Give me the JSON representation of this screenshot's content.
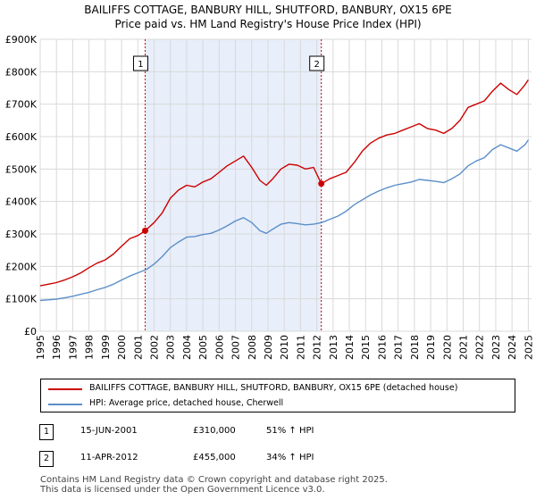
{
  "title": "BAILIFFS COTTAGE, BANBURY HILL, SHUTFORD, BANBURY, OX15 6PE",
  "subtitle": "Price paid vs. HM Land Registry's House Price Index (HPI)",
  "colors": {
    "property": "#cc0000",
    "hpi": "#5b8fc9",
    "shade": "#e8eefa",
    "grid": "#d9d9d9"
  },
  "chart_data": {
    "type": "line",
    "title": "BAILIFFS COTTAGE, BANBURY HILL, SHUTFORD, BANBURY, OX15 6PE",
    "subtitle": "Price paid vs. HM Land Registry's House Price Index (HPI)",
    "xlim": [
      1995,
      2025.2
    ],
    "ylim": [
      0,
      900000
    ],
    "y_ticks": [
      0,
      100000,
      200000,
      300000,
      400000,
      500000,
      600000,
      700000,
      800000,
      900000
    ],
    "y_tick_labels": [
      "£0",
      "£100K",
      "£200K",
      "£300K",
      "£400K",
      "£500K",
      "£600K",
      "£700K",
      "£800K",
      "£900K"
    ],
    "x_ticks": [
      1995,
      1996,
      1997,
      1998,
      1999,
      2000,
      2001,
      2002,
      2003,
      2004,
      2005,
      2006,
      2007,
      2008,
      2009,
      2010,
      2011,
      2012,
      2013,
      2014,
      2015,
      2016,
      2017,
      2018,
      2019,
      2020,
      2021,
      2022,
      2023,
      2024,
      2025
    ],
    "x_tick_labels": [
      "1995",
      "1996",
      "1997",
      "1998",
      "1999",
      "2000",
      "2001",
      "2002",
      "2003",
      "2004",
      "2005",
      "2006",
      "2007",
      "2008",
      "2009",
      "2010",
      "2011",
      "2012",
      "2013",
      "2014",
      "2015",
      "2016",
      "2017",
      "2018",
      "2019",
      "2020",
      "2021",
      "2022",
      "2023",
      "2024",
      "2025"
    ],
    "grid": true,
    "shaded_period": {
      "from": 2001.45,
      "to": 2012.28
    },
    "series": [
      {
        "name": "BAILIFFS COTTAGE, BANBURY HILL, SHUTFORD, BANBURY, OX15 6PE (detached house)",
        "color": "#cc0000",
        "x": [
          1995,
          1995.5,
          1996,
          1996.5,
          1997,
          1997.5,
          1998,
          1998.5,
          1999,
          1999.5,
          2000,
          2000.5,
          2001,
          2001.45,
          2002,
          2002.5,
          2003,
          2003.5,
          2004,
          2004.5,
          2005,
          2005.5,
          2006,
          2006.5,
          2007,
          2007.5,
          2008,
          2008.5,
          2008.9,
          2009.3,
          2009.8,
          2010.3,
          2010.8,
          2011.3,
          2011.8,
          2012.28,
          2012.8,
          2013.3,
          2013.8,
          2014.3,
          2014.8,
          2015.3,
          2015.8,
          2016.3,
          2016.8,
          2017.3,
          2017.8,
          2018.3,
          2018.8,
          2019.3,
          2019.8,
          2020.3,
          2020.8,
          2021.3,
          2021.8,
          2022.3,
          2022.8,
          2023.3,
          2023.8,
          2024.3,
          2024.8,
          2025.0
        ],
        "y": [
          140000,
          145000,
          150000,
          158000,
          168000,
          180000,
          196000,
          210000,
          220000,
          238000,
          262000,
          285000,
          295000,
          310000,
          335000,
          365000,
          410000,
          435000,
          450000,
          445000,
          460000,
          470000,
          490000,
          510000,
          525000,
          540000,
          505000,
          465000,
          450000,
          470000,
          500000,
          515000,
          512000,
          500000,
          505000,
          455000,
          470000,
          480000,
          490000,
          520000,
          555000,
          580000,
          595000,
          605000,
          610000,
          620000,
          630000,
          640000,
          625000,
          620000,
          610000,
          625000,
          650000,
          690000,
          700000,
          710000,
          740000,
          765000,
          745000,
          730000,
          760000,
          775000
        ]
      },
      {
        "name": "HPI: Average price, detached house, Cherwell",
        "color": "#5b8fc9",
        "x": [
          1995,
          1995.5,
          1996,
          1996.5,
          1997,
          1997.5,
          1998,
          1998.5,
          1999,
          1999.5,
          2000,
          2000.5,
          2001,
          2001.5,
          2002,
          2002.5,
          2003,
          2003.5,
          2004,
          2004.5,
          2005,
          2005.5,
          2006,
          2006.5,
          2007,
          2007.5,
          2008,
          2008.5,
          2008.9,
          2009.3,
          2009.8,
          2010.3,
          2010.8,
          2011.3,
          2011.8,
          2012.3,
          2012.8,
          2013.3,
          2013.8,
          2014.3,
          2014.8,
          2015.3,
          2015.8,
          2016.3,
          2016.8,
          2017.3,
          2017.8,
          2018.3,
          2018.8,
          2019.3,
          2019.8,
          2020.3,
          2020.8,
          2021.3,
          2021.8,
          2022.3,
          2022.8,
          2023.3,
          2023.8,
          2024.3,
          2024.8,
          2025.0
        ],
        "y": [
          95000,
          97000,
          99000,
          103000,
          108000,
          114000,
          120000,
          128000,
          135000,
          145000,
          158000,
          170000,
          180000,
          190000,
          207000,
          230000,
          258000,
          275000,
          290000,
          292000,
          298000,
          302000,
          312000,
          325000,
          340000,
          350000,
          335000,
          310000,
          302000,
          315000,
          330000,
          335000,
          332000,
          328000,
          330000,
          335000,
          345000,
          355000,
          370000,
          390000,
          405000,
          420000,
          432000,
          442000,
          450000,
          455000,
          460000,
          468000,
          465000,
          462000,
          458000,
          470000,
          485000,
          510000,
          525000,
          535000,
          560000,
          575000,
          565000,
          555000,
          575000,
          590000
        ]
      }
    ],
    "sales": [
      {
        "label": "1",
        "x": 2001.45,
        "y": 310000,
        "date": "15-JUN-2001",
        "price": "£310,000",
        "hpi_change": "51% ↑ HPI"
      },
      {
        "label": "2",
        "x": 2012.28,
        "y": 455000,
        "date": "11-APR-2012",
        "price": "£455,000",
        "hpi_change": "34% ↑ HPI"
      }
    ]
  },
  "legend": {
    "property": "BAILIFFS COTTAGE, BANBURY HILL, SHUTFORD, BANBURY, OX15 6PE (detached house)",
    "hpi": "HPI: Average price, detached house, Cherwell"
  },
  "footer": {
    "line1": "Contains HM Land Registry data © Crown copyright and database right 2025.",
    "line2": "This data is licensed under the Open Government Licence v3.0."
  }
}
